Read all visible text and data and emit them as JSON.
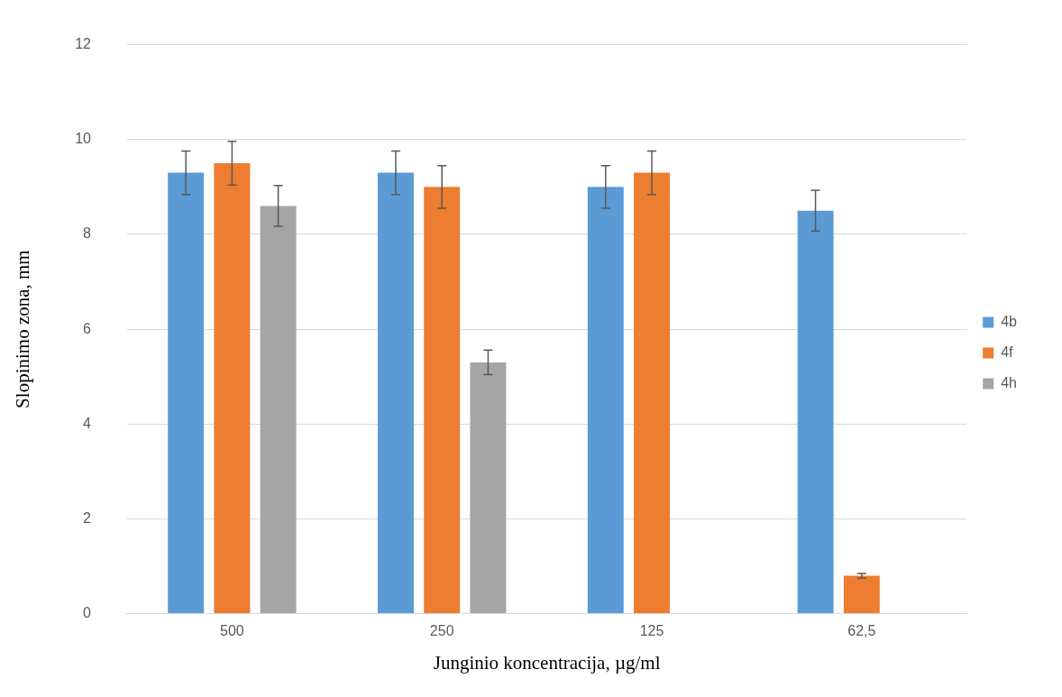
{
  "chart_data": {
    "type": "bar",
    "xlabel": "Junginio koncentracija, µg/ml",
    "ylabel": "Slopinimo zona, mm",
    "categories": [
      "500",
      "250",
      "125",
      "62,5"
    ],
    "series": [
      {
        "name": "4b",
        "color": "#5b9bd5",
        "values": [
          9.3,
          9.3,
          9.0,
          8.5
        ],
        "errors": [
          0.46,
          0.46,
          0.45,
          0.43
        ]
      },
      {
        "name": "4f",
        "color": "#ed7d31",
        "values": [
          9.5,
          9.0,
          9.3,
          0.8
        ],
        "errors": [
          0.46,
          0.45,
          0.46,
          0.05
        ]
      },
      {
        "name": "4h",
        "color": "#a5a5a5",
        "values": [
          8.6,
          5.3,
          0,
          0
        ],
        "errors": [
          0.43,
          0.26,
          null,
          null
        ]
      }
    ],
    "ylim": [
      0,
      12
    ],
    "yticks": [
      0,
      2,
      4,
      6,
      8,
      10,
      12
    ],
    "grid": "y",
    "legend": "right"
  }
}
